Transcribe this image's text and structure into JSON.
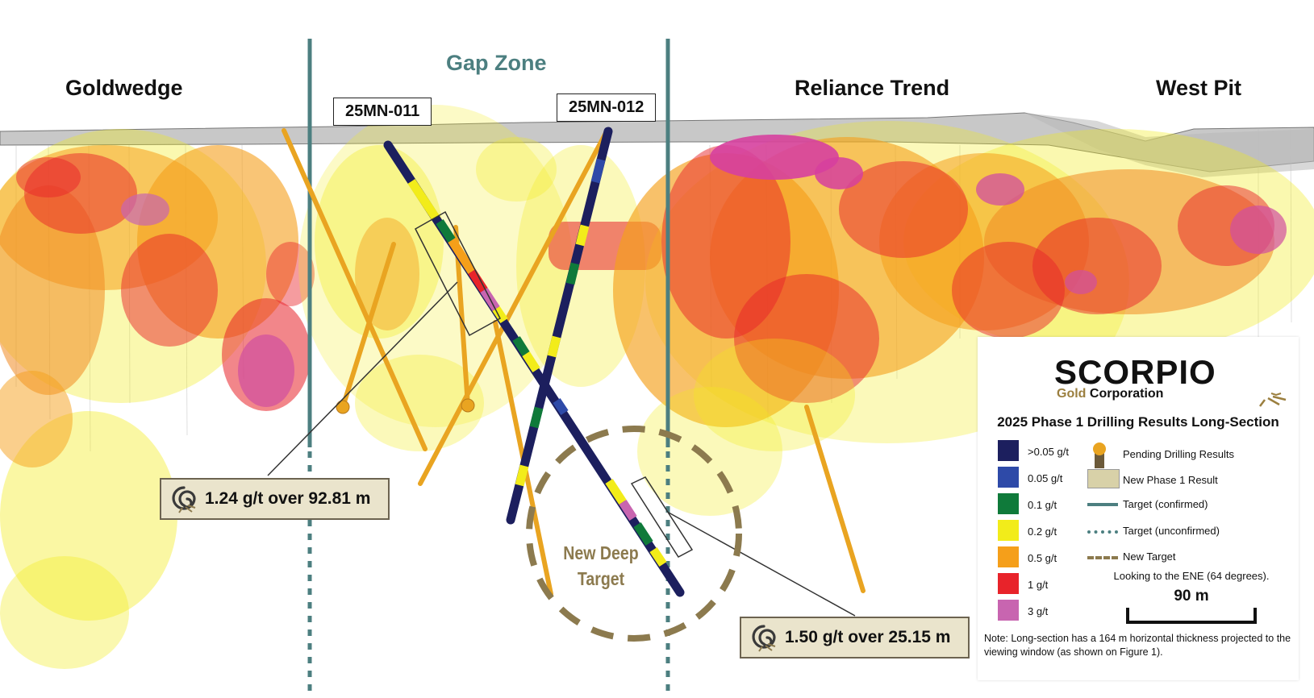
{
  "zones": {
    "goldwedge": "Goldwedge",
    "gap_zone": "Gap Zone",
    "reliance_trend": "Reliance Trend",
    "west_pit": "West Pit"
  },
  "holes": {
    "hole_011": "25MN-011",
    "hole_012": "25MN-012"
  },
  "results": {
    "result_011": "1.24 g/t over 92.81 m",
    "result_012": "1.50 g/t over 25.15 m"
  },
  "new_deep_target": {
    "line1": "New Deep",
    "line2": "Target"
  },
  "legend": {
    "logo_main": "SCORPIO",
    "logo_gold": "Gold",
    "logo_corp": "Corporation",
    "title": "2025 Phase 1 Drilling Results Long-Section",
    "grade_scale": [
      {
        "label": ">0.05 g/t",
        "color": "#1c1f5e"
      },
      {
        "label": "0.05 g/t",
        "color": "#2e4aa8"
      },
      {
        "label": "0.1 g/t",
        "color": "#0f7a3a"
      },
      {
        "label": "0.2 g/t",
        "color": "#f2ec1a"
      },
      {
        "label": "0.5 g/t",
        "color": "#f59f1a"
      },
      {
        "label": "1 g/t",
        "color": "#e8232a"
      },
      {
        "label": "3 g/t",
        "color": "#c865b0"
      }
    ],
    "symbols": {
      "pending": "Pending Drilling Results",
      "new_result": "New Phase 1 Result",
      "target_confirmed": "Target (confirmed)",
      "target_unconfirmed": "Target (unconfirmed)",
      "new_target": "New Target"
    },
    "looking": "Looking to the ENE (64 degrees).",
    "scale_bar": "90 m",
    "note": "Note: Long-section has a 164 m horizontal thickness projected to the viewing window (as shown on Figure 1)."
  },
  "colors": {
    "target_line": "#4c7f80",
    "new_target": "#8c7a4e",
    "pending_hole": "#e9a421",
    "new_result_fill": "#d8d1a8"
  }
}
